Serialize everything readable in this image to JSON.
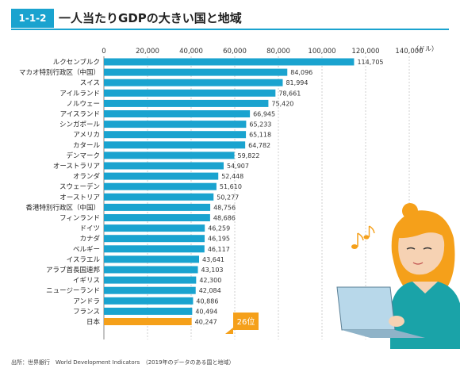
{
  "header": {
    "badge": "1-1-2",
    "title": "一人当たりGDPの大きい国と地域"
  },
  "source": "出所：世界銀行　World Development Indicators　（2019年のデータのある国と地域）",
  "colors": {
    "bar": "#1aa3cf",
    "highlight": "#f5a01a",
    "rule": "#1aa3cf"
  },
  "chart_data": {
    "type": "bar",
    "orientation": "horizontal",
    "unit": "（ドル）",
    "ticks": [
      "0",
      "20,000",
      "40,000",
      "60,000",
      "80,000",
      "100,000",
      "120,000",
      "140,000"
    ],
    "xlim": [
      0,
      140000
    ],
    "grid": true,
    "categories": [
      "ルクセンブルク",
      "マカオ特別行政区（中国）",
      "スイス",
      "アイルランド",
      "ノルウェー",
      "アイスランド",
      "シンガポール",
      "アメリカ",
      "カタール",
      "デンマーク",
      "オーストラリア",
      "オランダ",
      "スウェーデン",
      "オーストリア",
      "香港特別行政区（中国）",
      "フィンランド",
      "ドイツ",
      "カナダ",
      "ベルギー",
      "イスラエル",
      "アラブ首長国連邦",
      "イギリス",
      "ニュージーランド",
      "アンドラ",
      "フランス",
      "日本"
    ],
    "values": [
      114705,
      84096,
      81994,
      78661,
      75420,
      66945,
      65233,
      65118,
      64782,
      59822,
      54907,
      52448,
      51610,
      50277,
      48756,
      48686,
      46259,
      46195,
      46117,
      43641,
      43103,
      42300,
      42084,
      40886,
      40494,
      40247
    ],
    "value_labels": [
      "114,705",
      "84,096",
      "81,994",
      "78,661",
      "75,420",
      "66,945",
      "65,233",
      "65,118",
      "64,782",
      "59,822",
      "54,907",
      "52,448",
      "51,610",
      "50,277",
      "48,756",
      "48,686",
      "46,259",
      "46,195",
      "46,117",
      "43,641",
      "43,103",
      "42,300",
      "42,084",
      "40,886",
      "40,494",
      "40,247"
    ],
    "highlight_index": 25,
    "callout": "26位"
  }
}
